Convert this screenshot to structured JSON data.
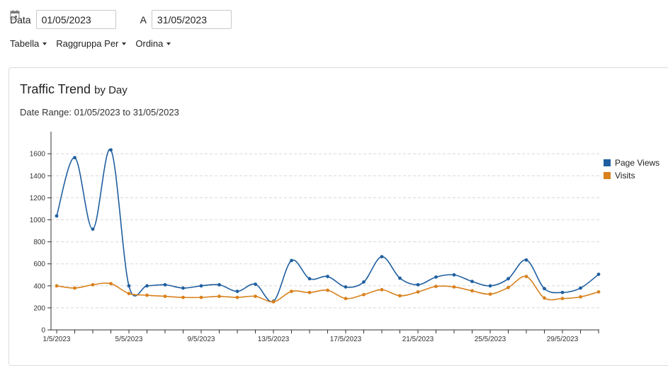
{
  "filters": {
    "date_label": "Data",
    "from_value": "01/05/2023",
    "to_label": "A",
    "to_value": "31/05/2023",
    "calendar_icon": "calendar-icon"
  },
  "toolbar": {
    "table_label": "Tabella",
    "group_label": "Raggruppa Per",
    "sort_label": "Ordina"
  },
  "colors": {
    "page_views": "#1f5fa0",
    "visits": "#d9811c"
  },
  "chart_data": {
    "type": "line",
    "title": "Traffic Trend",
    "title_suffix": "by Day",
    "subtitle": "Date Range: 01/05/2023 to 31/05/2023",
    "xlabel": "",
    "ylabel": "",
    "ylim": [
      0,
      1800
    ],
    "yticks": [
      0,
      200,
      400,
      600,
      800,
      1000,
      1200,
      1400,
      1600
    ],
    "x": [
      1,
      2,
      3,
      4,
      5,
      6,
      7,
      8,
      9,
      10,
      11,
      12,
      13,
      14,
      15,
      16,
      17,
      18,
      19,
      20,
      21,
      22,
      23,
      24,
      25,
      26,
      27,
      28,
      29,
      30,
      31
    ],
    "xtick_labels": [
      {
        "day": 1,
        "label": "1/5/2023"
      },
      {
        "day": 5,
        "label": "5/5/2023"
      },
      {
        "day": 9,
        "label": "9/5/2023"
      },
      {
        "day": 13,
        "label": "13/5/2023"
      },
      {
        "day": 17,
        "label": "17/5/2023"
      },
      {
        "day": 21,
        "label": "21/5/2023"
      },
      {
        "day": 25,
        "label": "25/5/2023"
      },
      {
        "day": 29,
        "label": "29/5/2023"
      }
    ],
    "grid": "horizontal dashed",
    "legend_position": "right",
    "series": [
      {
        "name": "Page Views",
        "values": [
          1035,
          1565,
          915,
          1635,
          400,
          400,
          410,
          380,
          400,
          410,
          350,
          415,
          260,
          630,
          465,
          485,
          390,
          435,
          665,
          470,
          410,
          480,
          500,
          440,
          400,
          465,
          635,
          375,
          340,
          380,
          505
        ]
      },
      {
        "name": "Visits",
        "values": [
          400,
          380,
          410,
          420,
          330,
          315,
          305,
          295,
          295,
          305,
          295,
          305,
          255,
          350,
          340,
          360,
          285,
          320,
          365,
          310,
          345,
          395,
          390,
          355,
          325,
          385,
          485,
          290,
          285,
          300,
          345
        ]
      }
    ]
  }
}
